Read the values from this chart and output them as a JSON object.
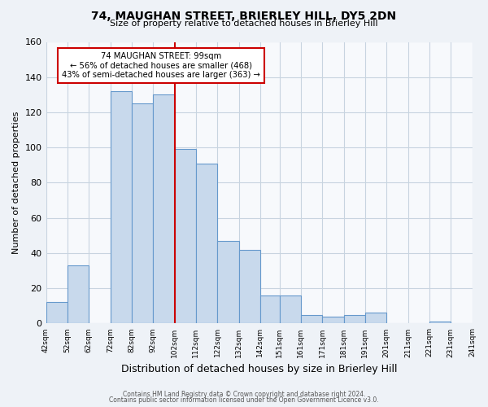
{
  "title": "74, MAUGHAN STREET, BRIERLEY HILL, DY5 2DN",
  "subtitle": "Size of property relative to detached houses in Brierley Hill",
  "xlabel": "Distribution of detached houses by size in Brierley Hill",
  "ylabel": "Number of detached properties",
  "bar_color": "#c8d9ec",
  "bar_edge_color": "#6699cc",
  "bins": [
    42,
    52,
    62,
    72,
    82,
    92,
    102,
    112,
    122,
    132,
    142,
    151,
    161,
    171,
    181,
    191,
    201,
    211,
    221,
    231,
    241
  ],
  "counts": [
    12,
    33,
    0,
    132,
    125,
    130,
    99,
    91,
    47,
    42,
    16,
    16,
    5,
    4,
    5,
    6,
    0,
    0,
    1,
    0
  ],
  "vline_x": 102,
  "vline_color": "#cc0000",
  "annotation_title": "74 MAUGHAN STREET: 99sqm",
  "annotation_line1": "← 56% of detached houses are smaller (468)",
  "annotation_line2": "43% of semi-detached houses are larger (363) →",
  "annotation_box_color": "#ffffff",
  "annotation_box_edge": "#cc0000",
  "ylim": [
    0,
    160
  ],
  "yticks": [
    0,
    20,
    40,
    60,
    80,
    100,
    120,
    140,
    160
  ],
  "tick_labels": [
    "42sqm",
    "52sqm",
    "62sqm",
    "72sqm",
    "82sqm",
    "92sqm",
    "102sqm",
    "112sqm",
    "122sqm",
    "132sqm",
    "142sqm",
    "151sqm",
    "161sqm",
    "171sqm",
    "181sqm",
    "191sqm",
    "201sqm",
    "211sqm",
    "221sqm",
    "231sqm",
    "241sqm"
  ],
  "footer1": "Contains HM Land Registry data © Crown copyright and database right 2024.",
  "footer2": "Contains public sector information licensed under the Open Government Licence v3.0.",
  "bg_color": "#eef2f7",
  "plot_bg_color": "#f7f9fc",
  "grid_color": "#c8d4e0"
}
